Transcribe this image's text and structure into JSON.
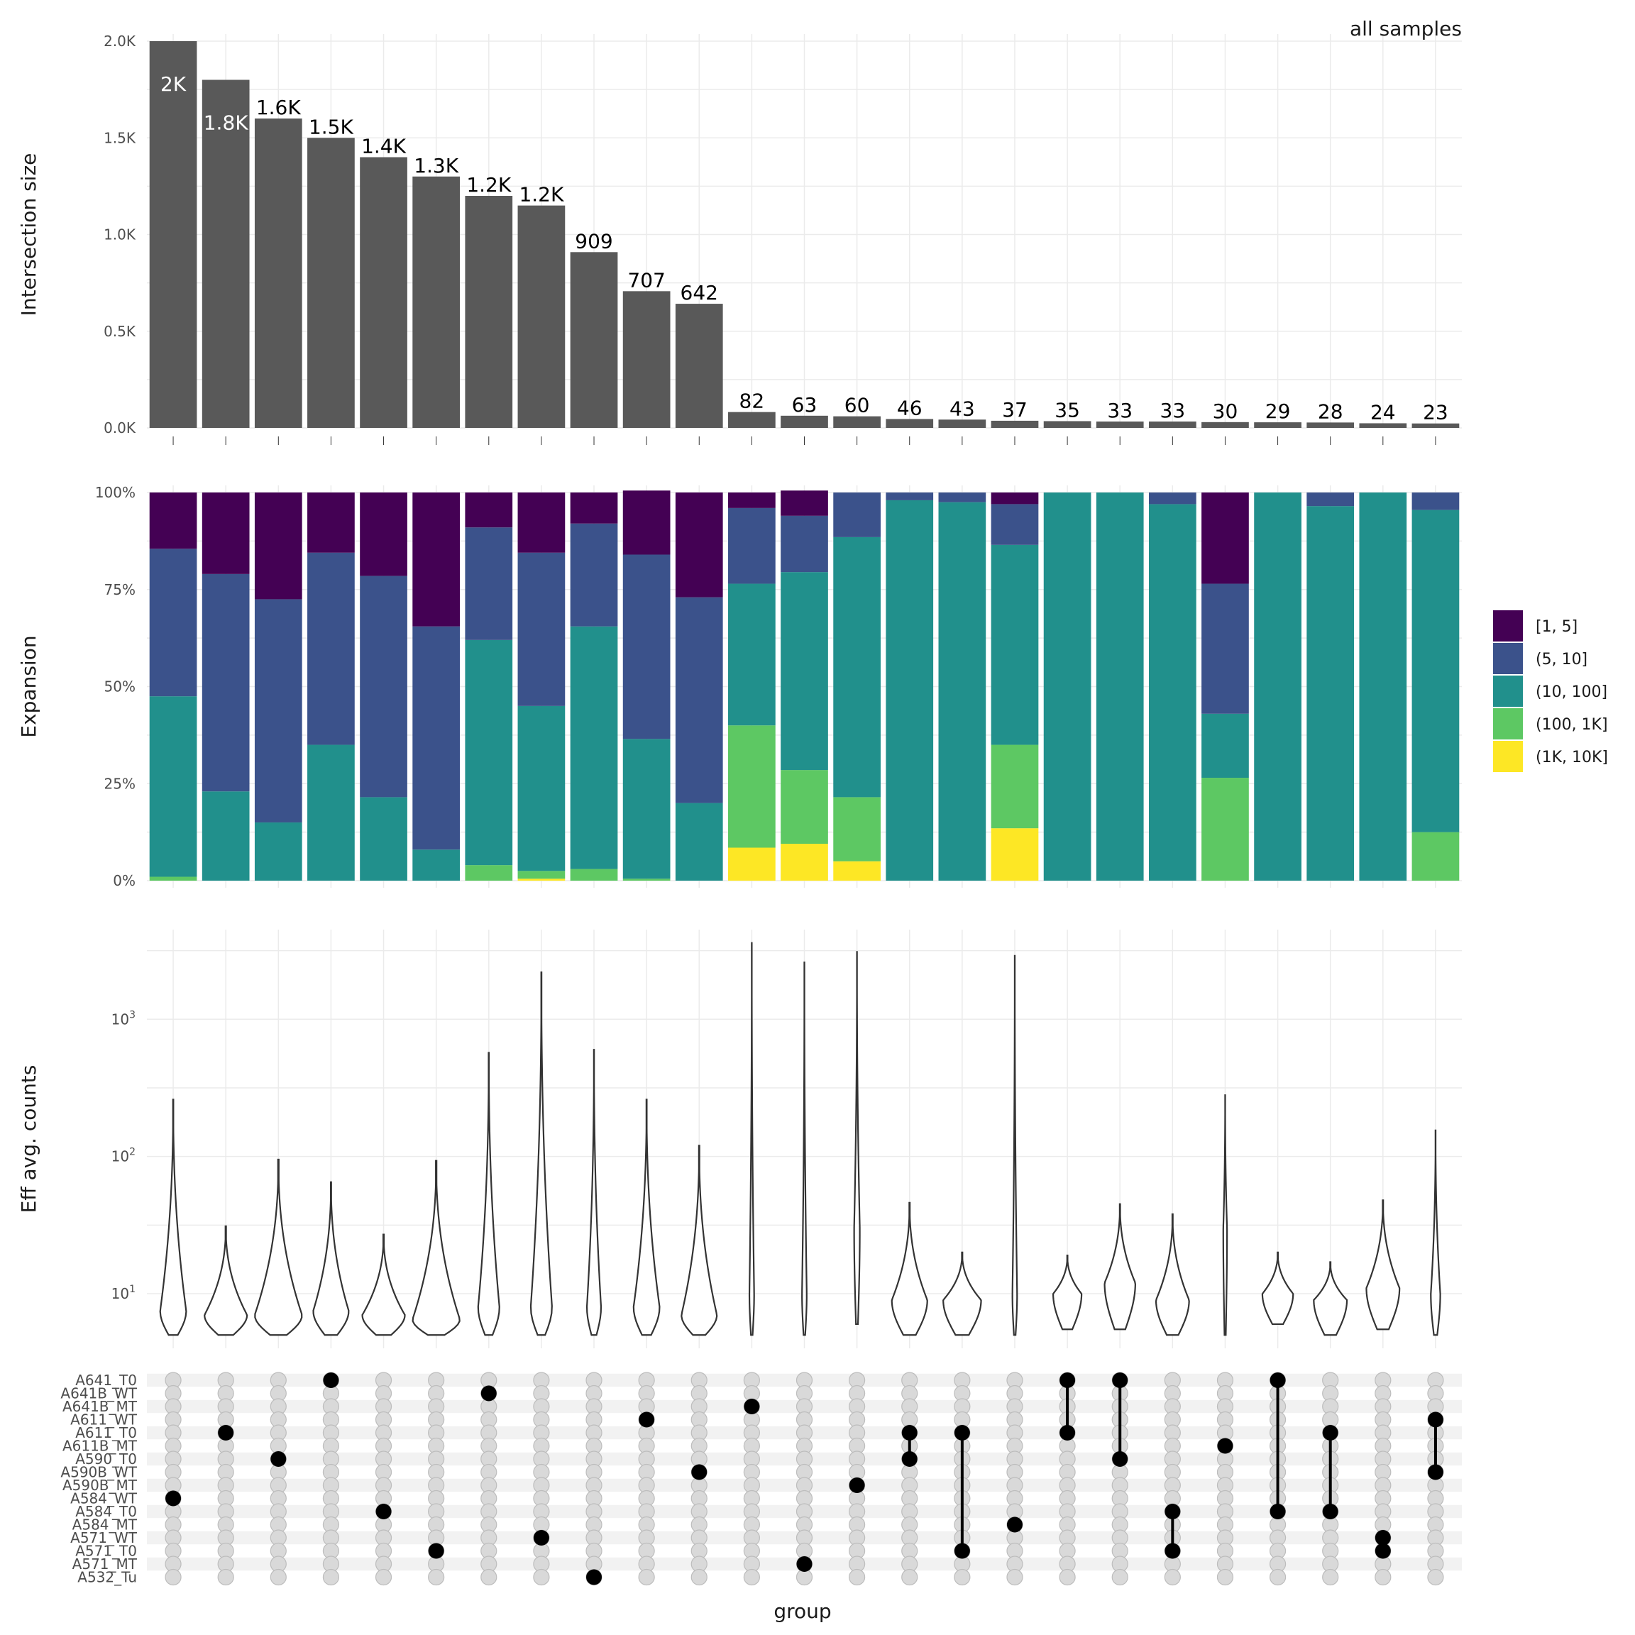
{
  "chart_data": {
    "type": "upset",
    "annotation": "all samples",
    "x_axis_label": "group",
    "intersection_size": {
      "type": "bar",
      "ylabel": "Intersection size",
      "ylim": [
        0,
        2000
      ],
      "ticks": [
        0,
        500,
        1000,
        1500,
        2000
      ],
      "tick_labels": [
        "0.0K",
        "0.5K",
        "1.0K",
        "1.5K",
        "2.0K"
      ],
      "values": [
        2000,
        1800,
        1600,
        1500,
        1400,
        1300,
        1200,
        1150,
        909,
        707,
        642,
        82,
        63,
        60,
        46,
        43,
        37,
        35,
        33,
        33,
        30,
        29,
        28,
        24,
        23
      ],
      "labels": [
        "2K",
        "1.8K",
        "1.6K",
        "1.5K",
        "1.4K",
        "1.3K",
        "1.2K",
        "1.2K",
        "909",
        "707",
        "642",
        "82",
        "63",
        "60",
        "46",
        "43",
        "37",
        "35",
        "33",
        "33",
        "30",
        "29",
        "28",
        "24",
        "23"
      ]
    },
    "expansion": {
      "type": "stacked_bar_percent",
      "ylabel": "Expansion",
      "ylim": [
        0,
        100
      ],
      "ticks": [
        0,
        25,
        50,
        75,
        100
      ],
      "tick_labels": [
        "0%",
        "25%",
        "50%",
        "75%",
        "100%"
      ],
      "categories": [
        "[1, 5]",
        "(5, 10]",
        "(10, 100]",
        "(100, 1K]",
        "(1K, 10K]"
      ],
      "colors": [
        "#440154",
        "#3b528b",
        "#21908c",
        "#5dc863",
        "#fde725"
      ],
      "series": [
        {
          "name": "[1, 5]",
          "values": [
            14.5,
            21,
            27.5,
            15.5,
            21.5,
            34.5,
            9,
            15.5,
            8,
            16.5,
            27,
            4,
            6.5,
            0,
            0,
            0,
            3,
            0,
            0,
            0,
            23.5,
            0,
            0,
            0,
            0
          ]
        },
        {
          "name": "(5, 10]",
          "values": [
            38,
            56,
            57.5,
            49.5,
            57,
            57.5,
            29,
            39.5,
            26.5,
            47.5,
            53,
            19.5,
            14.5,
            11.5,
            2,
            2.5,
            10.5,
            0,
            0,
            3,
            33.5,
            0,
            3.5,
            0,
            4.5
          ]
        },
        {
          "name": "(10, 100]",
          "values": [
            46.5,
            23,
            15,
            35,
            21.5,
            8,
            58,
            42.5,
            62.5,
            36,
            20,
            36.5,
            51,
            67,
            98,
            97.5,
            51.5,
            100,
            100,
            97,
            16.5,
            100,
            96.5,
            100,
            83
          ]
        },
        {
          "name": "(100, 1K]",
          "values": [
            1,
            0,
            0,
            0,
            0,
            0,
            4,
            2,
            3,
            0.5,
            0,
            31.5,
            19,
            16.5,
            0,
            0,
            21.5,
            0,
            0,
            0,
            26.5,
            0,
            0,
            0,
            12.5
          ]
        },
        {
          "name": "(1K, 10K]",
          "values": [
            0,
            0,
            0,
            0,
            0,
            0,
            0,
            0.5,
            0,
            0,
            0,
            8.5,
            9.5,
            5,
            0,
            0,
            13.5,
            0,
            0,
            0,
            0,
            0,
            0,
            0,
            0
          ]
        }
      ]
    },
    "eff_counts": {
      "type": "violin",
      "ylabel": "Eff avg. counts",
      "scale": "log10",
      "ylim": [
        4,
        4500
      ],
      "ticks": [
        10,
        100,
        1000
      ],
      "tick_base": "10",
      "tick_exponents": [
        "1",
        "2",
        "3"
      ],
      "violins": [
        {
          "min": 5,
          "max": 260,
          "mode": 7.5,
          "width": 0.55
        },
        {
          "min": 5,
          "max": 31,
          "mode": 7,
          "width": 0.9
        },
        {
          "min": 5,
          "max": 95,
          "mode": 7,
          "width": 1.0
        },
        {
          "min": 5,
          "max": 65,
          "mode": 7.5,
          "width": 0.75
        },
        {
          "min": 5,
          "max": 27,
          "mode": 7,
          "width": 0.9
        },
        {
          "min": 5,
          "max": 93,
          "mode": 6.5,
          "width": 1.0
        },
        {
          "min": 5,
          "max": 570,
          "mode": 8,
          "width": 0.45
        },
        {
          "min": 5,
          "max": 2200,
          "mode": 8,
          "width": 0.45
        },
        {
          "min": 5,
          "max": 600,
          "mode": 8,
          "width": 0.3
        },
        {
          "min": 5,
          "max": 260,
          "mode": 8,
          "width": 0.55
        },
        {
          "min": 5,
          "max": 120,
          "mode": 7,
          "width": 0.75
        },
        {
          "min": 5,
          "max": 3600,
          "mode": 10,
          "width": 0.1
        },
        {
          "min": 5,
          "max": 2600,
          "mode": 10,
          "width": 0.1
        },
        {
          "min": 6,
          "max": 3100,
          "mode": 30,
          "width": 0.12
        },
        {
          "min": 5,
          "max": 46,
          "mode": 9,
          "width": 0.75
        },
        {
          "min": 5,
          "max": 20,
          "mode": 9,
          "width": 0.8
        },
        {
          "min": 5,
          "max": 2900,
          "mode": 10,
          "width": 0.1
        },
        {
          "min": 5.5,
          "max": 19,
          "mode": 10,
          "width": 0.6
        },
        {
          "min": 5.5,
          "max": 45,
          "mode": 12,
          "width": 0.65
        },
        {
          "min": 5,
          "max": 38,
          "mode": 9,
          "width": 0.7
        },
        {
          "min": 5,
          "max": 280,
          "mode": 30,
          "width": 0.08
        },
        {
          "min": 6,
          "max": 20,
          "mode": 10,
          "width": 0.65
        },
        {
          "min": 5,
          "max": 17,
          "mode": 9,
          "width": 0.7
        },
        {
          "min": 5.5,
          "max": 48,
          "mode": 11,
          "width": 0.7
        },
        {
          "min": 5,
          "max": 155,
          "mode": 10,
          "width": 0.2
        }
      ]
    },
    "sets": [
      "A641_T0",
      "A641B_WT",
      "A641B_MT",
      "A611_WT",
      "A611_T0",
      "A611B_MT",
      "A590_T0",
      "A590B_WT",
      "A590B_MT",
      "A584_WT",
      "A584_T0",
      "A584_MT",
      "A571_WT",
      "A571_T0",
      "A571_MT",
      "A532_Tu"
    ],
    "membership": [
      [
        "A584_WT"
      ],
      [
        "A611_T0"
      ],
      [
        "A590_T0"
      ],
      [
        "A641_T0"
      ],
      [
        "A584_T0"
      ],
      [
        "A571_T0"
      ],
      [
        "A641B_WT"
      ],
      [
        "A571_WT"
      ],
      [
        "A532_Tu"
      ],
      [
        "A611_WT"
      ],
      [
        "A590B_WT"
      ],
      [
        "A641B_MT"
      ],
      [
        "A571_MT"
      ],
      [
        "A590B_MT"
      ],
      [
        "A611_T0",
        "A590_T0"
      ],
      [
        "A611_T0",
        "A571_T0"
      ],
      [
        "A584_MT"
      ],
      [
        "A641_T0",
        "A611_T0"
      ],
      [
        "A641_T0",
        "A590_T0"
      ],
      [
        "A584_T0",
        "A571_T0"
      ],
      [
        "A611B_MT"
      ],
      [
        "A641_T0",
        "A584_T0"
      ],
      [
        "A611_T0",
        "A584_T0"
      ],
      [
        "A571_WT",
        "A571_T0"
      ],
      [
        "A611_WT",
        "A590B_WT"
      ]
    ],
    "colors": {
      "bar": "#595959",
      "grid": "#ebebeb",
      "matrix_stripe": "#f2f2f2",
      "dot_active": "#000000",
      "dot_inactive": "#d9d9d9",
      "dot_inactive_stroke": "#bdbdbd"
    }
  }
}
